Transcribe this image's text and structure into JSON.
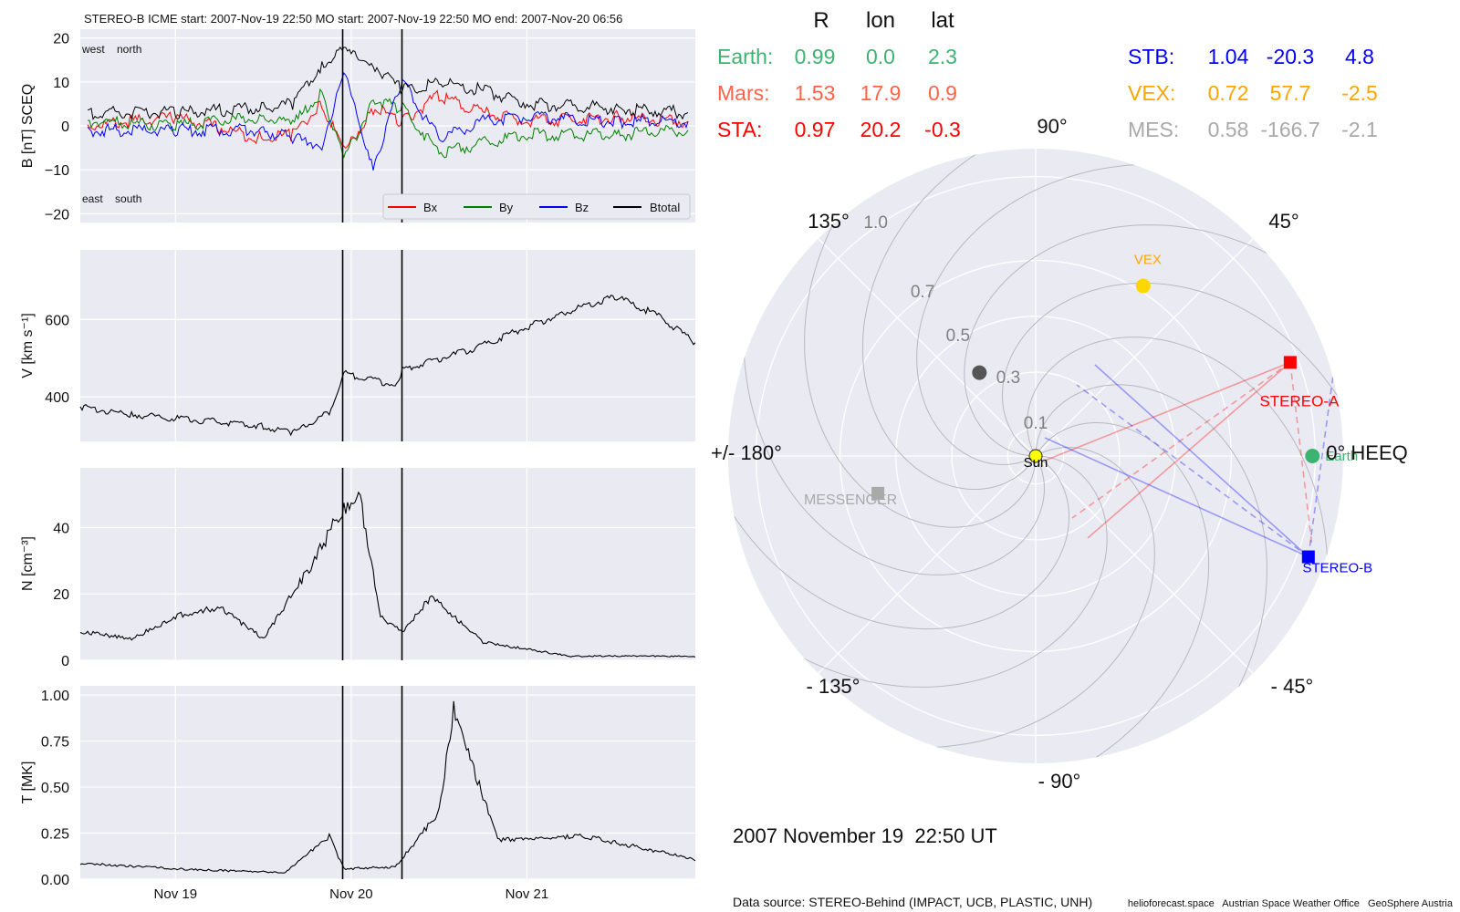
{
  "header": {
    "text": "STEREO-B    ICME start: 2007-Nov-19 22:50   MO start: 2007-Nov-19 22:50   MO end: 2007-Nov-20 06:56"
  },
  "b_panel": {
    "ylabel": "B [nT] SCEQ",
    "corner_labels": [
      "west    north",
      "east    south"
    ],
    "legend": [
      "Bx",
      "By",
      "Bz",
      "Btotal"
    ],
    "colors": {
      "Bx": "#ff0000",
      "By": "#008000",
      "Bz": "#0000ff",
      "Btotal": "#000000"
    }
  },
  "v_panel": {
    "ylabel": "V [km s⁻¹]"
  },
  "n_panel": {
    "ylabel": "N [cm⁻³]"
  },
  "t_panel": {
    "ylabel": "T [MK]"
  },
  "date_ticks": [
    "Nov 19",
    "Nov 20",
    "Nov 21"
  ],
  "table": {
    "header": [
      "R",
      "lon",
      "lat"
    ],
    "left_rows": [
      {
        "name": "Earth:",
        "R": "0.99",
        "lon": "0.0",
        "lat": "2.3",
        "color": "#3cb371"
      },
      {
        "name": "Mars:",
        "R": "1.53",
        "lon": "17.9",
        "lat": "0.9",
        "color": "#ff6347"
      },
      {
        "name": "STA:",
        "R": "0.97",
        "lon": "20.2",
        "lat": "-0.3",
        "color": "#ff0000"
      }
    ],
    "right_rows": [
      {
        "name": "STB:",
        "R": "1.04",
        "lon": "-20.3",
        "lat": "4.8",
        "color": "#0000ff"
      },
      {
        "name": "VEX:",
        "R": "0.72",
        "lon": "57.7",
        "lat": "-2.5",
        "color": "#ffa500"
      },
      {
        "name": "MES:",
        "R": "0.58",
        "lon": "-166.7",
        "lat": "-2.1",
        "color": "#a9a9a9"
      }
    ]
  },
  "polar": {
    "angle_labels": {
      "a90": "90°",
      "a45": "45°",
      "a135": "135°",
      "a180": "+/- 180°",
      "a0": "0° HEEQ",
      "am135": "- 135°",
      "am45": "- 45°",
      "am90": "- 90°"
    },
    "radial_labels": [
      "0.1",
      "0.3",
      "0.5",
      "0.7",
      "1.0"
    ],
    "bodies": {
      "sun": "Sun",
      "earth": "Earth",
      "stereo_a": "STEREO-A",
      "stereo_b": "STEREO-B",
      "vex": "VEX",
      "messenger": "MESSENGER"
    }
  },
  "datetime": "2007 November 19  22:50 UT",
  "footer": {
    "source": "Data source: STEREO-Behind (IMPACT, UCB, PLASTIC, UNH)",
    "credits": "helioforecast.space   Austrian Space Weather Office   GeoSphere Austria"
  },
  "chart_data": [
    {
      "type": "line",
      "panel": "magnetic field",
      "xlabel": "",
      "ylabel": "B [nT] SCEQ",
      "ylim": [
        -22,
        22
      ],
      "x_range": [
        "2007-11-18T11:00",
        "2007-11-21T23:00"
      ],
      "event_markers": [
        "2007-11-19T22:50",
        "2007-11-20T06:56"
      ],
      "grid": true,
      "legend_position": "bottom-right",
      "x": [
        "2007-11-18T12:00",
        "2007-11-19T00:00",
        "2007-11-19T12:00",
        "2007-11-19T16:00",
        "2007-11-19T20:00",
        "2007-11-19T23:00",
        "2007-11-20T03:00",
        "2007-11-20T07:00",
        "2007-11-20T12:00",
        "2007-11-20T18:00",
        "2007-11-21T00:00",
        "2007-11-21T12:00",
        "2007-11-21T22:00"
      ],
      "series": [
        {
          "name": "Bx",
          "values": [
            0,
            2,
            -3,
            -2,
            5,
            -6,
            4,
            1,
            7,
            3,
            1,
            2,
            1
          ]
        },
        {
          "name": "By",
          "values": [
            1,
            0,
            2,
            0,
            8,
            -8,
            6,
            4,
            -6,
            -4,
            -2,
            -2,
            -1
          ]
        },
        {
          "name": "Bz",
          "values": [
            -1,
            -1,
            -1,
            -3,
            -4,
            12,
            -9,
            10,
            -3,
            1,
            2,
            1,
            1
          ]
        },
        {
          "name": "Btotal",
          "values": [
            3,
            3,
            4,
            5,
            14,
            17,
            14,
            8,
            10,
            8,
            5,
            4,
            3
          ]
        }
      ]
    },
    {
      "type": "line",
      "panel": "speed",
      "ylabel": "V [km s⁻¹]",
      "ylim": [
        285,
        780
      ],
      "grid": true,
      "x": [
        "2007-11-18T11:00",
        "2007-11-18T18:00",
        "2007-11-19T00:00",
        "2007-11-19T12:00",
        "2007-11-19T16:00",
        "2007-11-19T21:00",
        "2007-11-19T23:00",
        "2007-11-20T06:00",
        "2007-11-20T07:00",
        "2007-11-20T16:00",
        "2007-11-21T04:00",
        "2007-11-21T12:00",
        "2007-11-21T18:00",
        "2007-11-21T23:00"
      ],
      "series": [
        {
          "name": "",
          "values": [
            375,
            355,
            345,
            325,
            305,
            360,
            460,
            430,
            470,
            520,
            610,
            660,
            610,
            540
          ]
        }
      ]
    },
    {
      "type": "line",
      "panel": "density",
      "ylabel": "N [cm⁻³]",
      "ylim": [
        0,
        58
      ],
      "grid": true,
      "x": [
        "2007-11-18T11:00",
        "2007-11-18T18:00",
        "2007-11-19T01:00",
        "2007-11-19T06:00",
        "2007-11-19T12:00",
        "2007-11-19T18:00",
        "2007-11-19T22:00",
        "2007-11-20T01:00",
        "2007-11-20T04:00",
        "2007-11-20T07:00",
        "2007-11-20T11:00",
        "2007-11-20T18:00",
        "2007-11-21T06:00",
        "2007-11-21T23:00"
      ],
      "series": [
        {
          "name": "",
          "values": [
            8,
            6,
            13,
            15,
            6,
            25,
            40,
            48,
            12,
            8,
            18,
            5,
            1,
            1
          ]
        }
      ]
    },
    {
      "type": "line",
      "panel": "temperature",
      "ylabel": "T [MK]",
      "ylim": [
        0,
        1.05
      ],
      "grid": true,
      "x": [
        "2007-11-18T11:00",
        "2007-11-19T00:00",
        "2007-11-19T15:00",
        "2007-11-19T21:00",
        "2007-11-19T23:00",
        "2007-11-20T06:00",
        "2007-11-20T09:00",
        "2007-11-20T12:00",
        "2007-11-20T14:00",
        "2007-11-20T20:00",
        "2007-11-21T08:00",
        "2007-11-21T23:00"
      ],
      "series": [
        {
          "name": "",
          "values": [
            0.08,
            0.05,
            0.03,
            0.22,
            0.05,
            0.06,
            0.2,
            0.35,
            0.88,
            0.2,
            0.22,
            0.1
          ]
        }
      ]
    },
    {
      "type": "scatter",
      "panel": "orbit plot",
      "projection": "polar",
      "rlim": [
        0,
        1.1
      ],
      "grid": true,
      "points": [
        {
          "name": "Sun",
          "r": 0.0,
          "lon": 0.0
        },
        {
          "name": "Earth",
          "r": 0.99,
          "lon": 0.0
        },
        {
          "name": "STEREO-A",
          "r": 0.97,
          "lon": 20.2
        },
        {
          "name": "STEREO-B",
          "r": 1.04,
          "lon": -20.3
        },
        {
          "name": "VEX",
          "r": 0.72,
          "lon": 57.7
        },
        {
          "name": "MESSENGER",
          "r": 0.58,
          "lon": -166.7
        },
        {
          "name": "",
          "r": 0.36,
          "lon": 124.0
        }
      ]
    }
  ]
}
